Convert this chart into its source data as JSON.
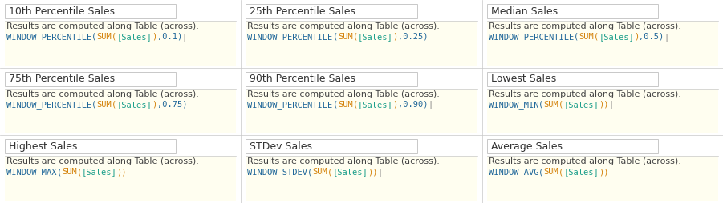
{
  "cells": [
    {
      "title": "10th Percentile Sales",
      "desc": "Results are computed along Table (across).",
      "formula_parts": [
        {
          "text": "WINDOW_PERCENTILE",
          "color": "#1F6699"
        },
        {
          "text": "(",
          "color": "#1F6699"
        },
        {
          "text": "SUM",
          "color": "#D4820A"
        },
        {
          "text": "(",
          "color": "#D4820A"
        },
        {
          "text": "[Sales]",
          "color": "#1A9E8A"
        },
        {
          "text": ")",
          "color": "#D4820A"
        },
        {
          "text": ",0.1)",
          "color": "#1F6699"
        },
        {
          "text": "|",
          "color": "#888888"
        }
      ],
      "col": 0,
      "row": 0
    },
    {
      "title": "25th Percentile Sales",
      "desc": "Results are computed along Table (across).",
      "formula_parts": [
        {
          "text": "WINDOW_PERCENTILE",
          "color": "#1F6699"
        },
        {
          "text": "(",
          "color": "#1F6699"
        },
        {
          "text": "SUM",
          "color": "#D4820A"
        },
        {
          "text": "(",
          "color": "#D4820A"
        },
        {
          "text": "[Sales]",
          "color": "#1A9E8A"
        },
        {
          "text": ")",
          "color": "#D4820A"
        },
        {
          "text": ",0.25)",
          "color": "#1F6699"
        }
      ],
      "col": 1,
      "row": 0
    },
    {
      "title": "Median Sales",
      "desc": "Results are computed along Table (across).",
      "formula_parts": [
        {
          "text": "WINDOW_PERCENTILE",
          "color": "#1F6699"
        },
        {
          "text": "(",
          "color": "#1F6699"
        },
        {
          "text": "SUM",
          "color": "#D4820A"
        },
        {
          "text": "(",
          "color": "#D4820A"
        },
        {
          "text": "[Sales]",
          "color": "#1A9E8A"
        },
        {
          "text": ")",
          "color": "#D4820A"
        },
        {
          "text": ",0.5)",
          "color": "#1F6699"
        },
        {
          "text": "|",
          "color": "#888888"
        }
      ],
      "col": 2,
      "row": 0
    },
    {
      "title": "75th Percentile Sales",
      "desc": "Results are computed along Table (across).",
      "formula_parts": [
        {
          "text": "WINDOW_PERCENTILE",
          "color": "#1F6699"
        },
        {
          "text": "(",
          "color": "#1F6699"
        },
        {
          "text": "SUM",
          "color": "#D4820A"
        },
        {
          "text": "(",
          "color": "#D4820A"
        },
        {
          "text": "[Sales]",
          "color": "#1A9E8A"
        },
        {
          "text": ")",
          "color": "#D4820A"
        },
        {
          "text": ",0.75)",
          "color": "#1F6699"
        }
      ],
      "col": 0,
      "row": 1
    },
    {
      "title": "90th Percentile Sales",
      "desc": "Results are computed along Table (across).",
      "formula_parts": [
        {
          "text": "WINDOW_PERCENTILE",
          "color": "#1F6699"
        },
        {
          "text": "(",
          "color": "#1F6699"
        },
        {
          "text": "SUM",
          "color": "#D4820A"
        },
        {
          "text": "(",
          "color": "#D4820A"
        },
        {
          "text": "[Sales]",
          "color": "#1A9E8A"
        },
        {
          "text": ")",
          "color": "#D4820A"
        },
        {
          "text": ",0.90)",
          "color": "#1F6699"
        },
        {
          "text": "|",
          "color": "#888888"
        }
      ],
      "col": 1,
      "row": 1
    },
    {
      "title": "Lowest Sales",
      "desc": "Results are computed along Table (across).",
      "formula_parts": [
        {
          "text": "WINDOW_MIN",
          "color": "#1F6699"
        },
        {
          "text": "(",
          "color": "#1F6699"
        },
        {
          "text": "SUM",
          "color": "#D4820A"
        },
        {
          "text": "(",
          "color": "#D4820A"
        },
        {
          "text": "[Sales]",
          "color": "#1A9E8A"
        },
        {
          "text": "))",
          "color": "#D4820A"
        },
        {
          "text": "|",
          "color": "#888888"
        }
      ],
      "col": 2,
      "row": 1
    },
    {
      "title": "Highest Sales",
      "desc": "Results are computed along Table (across).",
      "formula_parts": [
        {
          "text": "WINDOW_MAX",
          "color": "#1F6699"
        },
        {
          "text": "(",
          "color": "#1F6699"
        },
        {
          "text": "SUM",
          "color": "#D4820A"
        },
        {
          "text": "(",
          "color": "#D4820A"
        },
        {
          "text": "[Sales]",
          "color": "#1A9E8A"
        },
        {
          "text": "))",
          "color": "#D4820A"
        }
      ],
      "col": 0,
      "row": 2
    },
    {
      "title": "STDev Sales",
      "desc": "Results are computed along Table (across).",
      "formula_parts": [
        {
          "text": "WINDOW_STDEV",
          "color": "#1F6699"
        },
        {
          "text": "(",
          "color": "#1F6699"
        },
        {
          "text": "SUM",
          "color": "#D4820A"
        },
        {
          "text": "(",
          "color": "#D4820A"
        },
        {
          "text": "[Sales]",
          "color": "#1A9E8A"
        },
        {
          "text": "))",
          "color": "#D4820A"
        },
        {
          "text": "|",
          "color": "#888888"
        }
      ],
      "col": 1,
      "row": 2
    },
    {
      "title": "Average Sales",
      "desc": "Results are computed along Table (across).",
      "formula_parts": [
        {
          "text": "WINDOW_AVG",
          "color": "#1F6699"
        },
        {
          "text": "(",
          "color": "#1F6699"
        },
        {
          "text": "SUM",
          "color": "#D4820A"
        },
        {
          "text": "(",
          "color": "#D4820A"
        },
        {
          "text": "[Sales]",
          "color": "#1A9E8A"
        },
        {
          "text": "))",
          "color": "#D4820A"
        }
      ],
      "col": 2,
      "row": 2
    }
  ],
  "bg_color": "#ffffff",
  "cell_bg": "#ffffff",
  "formula_bg": "#FFFEF0",
  "border_color": "#C8C8C8",
  "title_color": "#333333",
  "desc_color": "#444444",
  "title_fontsize": 9,
  "desc_fontsize": 8,
  "formula_fontsize": 7.5,
  "num_cols": 3,
  "num_rows": 3,
  "fig_width": 9.01,
  "fig_height": 2.54,
  "dpi": 100
}
